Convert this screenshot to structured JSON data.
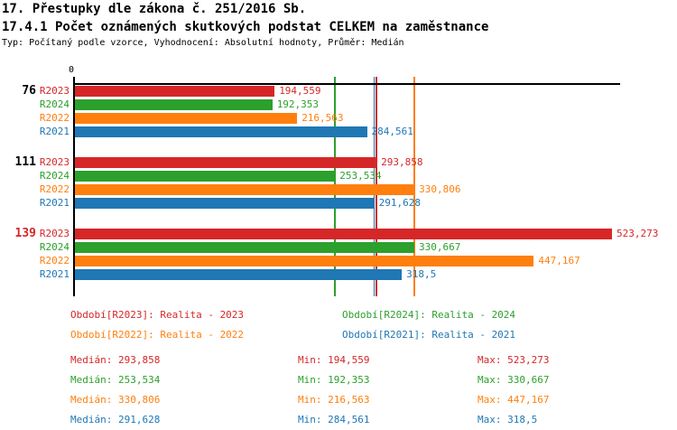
{
  "header": {
    "title_line1": "17. Přestupky dle zákona č. 251/2016 Sb.",
    "title_line2": "17.4.1 Počet oznámených skutkových podstat CELKEM na zaměstnance",
    "meta_line": "Typ: Počítaný podle vzorce, Vyhodnocení: Absolutní hodnoty, Průměr: Medián"
  },
  "colors": {
    "r2023_red": "#d62728",
    "r2024_green": "#2ca02c",
    "r2022_orange": "#ff7f0e",
    "r2021_blue": "#1f77b4",
    "axis_black": "#000000"
  },
  "chart_data": {
    "type": "bar",
    "orientation": "horizontal",
    "x_axis": {
      "zero_label": "0",
      "min": 0,
      "grid": false
    },
    "series_order": [
      "R2023",
      "R2024",
      "R2022",
      "R2021"
    ],
    "series_colors": {
      "R2023": "#d62728",
      "R2024": "#2ca02c",
      "R2022": "#ff7f0e",
      "R2021": "#1f77b4"
    },
    "groups": [
      {
        "label": "76",
        "label_color": "#000000",
        "bars": [
          {
            "series": "R2023",
            "value": 194.559,
            "label": "194,559"
          },
          {
            "series": "R2024",
            "value": 192.353,
            "label": "192,353"
          },
          {
            "series": "R2022",
            "value": 216.563,
            "label": "216,563"
          },
          {
            "series": "R2021",
            "value": 284.561,
            "label": "284,561"
          }
        ]
      },
      {
        "label": "111",
        "label_color": "#000000",
        "bars": [
          {
            "series": "R2023",
            "value": 293.858,
            "label": "293,858"
          },
          {
            "series": "R2024",
            "value": 253.534,
            "label": "253,534"
          },
          {
            "series": "R2022",
            "value": 330.806,
            "label": "330,806"
          },
          {
            "series": "R2021",
            "value": 291.628,
            "label": "291,628"
          }
        ]
      },
      {
        "label": "139",
        "label_color": "#d62728",
        "bars": [
          {
            "series": "R2023",
            "value": 523.273,
            "label": "523,273"
          },
          {
            "series": "R2024",
            "value": 330.667,
            "label": "330,667"
          },
          {
            "series": "R2022",
            "value": 447.167,
            "label": "447,167"
          },
          {
            "series": "R2021",
            "value": 318.5,
            "label": "318,5"
          }
        ]
      }
    ],
    "median_lines": [
      {
        "series": "R2024",
        "value": 253.534,
        "color": "#2ca02c"
      },
      {
        "series": "R2021",
        "value": 291.628,
        "color": "#1f77b4"
      },
      {
        "series": "R2023",
        "value": 293.858,
        "color": "#d62728"
      },
      {
        "series": "R2022",
        "value": 330.806,
        "color": "#ff7f0e"
      }
    ]
  },
  "legend": [
    {
      "label": "Období[R2023]: Realita - 2023",
      "color": "#d62728"
    },
    {
      "label": "Období[R2024]: Realita - 2024",
      "color": "#2ca02c"
    },
    {
      "label": "Období[R2022]: Realita - 2022",
      "color": "#ff7f0e"
    },
    {
      "label": "Období[R2021]: Realita - 2021",
      "color": "#1f77b4"
    }
  ],
  "stats": [
    {
      "median": "Medián: 293,858",
      "min": "Min: 194,559",
      "max": "Max: 523,273",
      "color": "#d62728"
    },
    {
      "median": "Medián: 253,534",
      "min": "Min: 192,353",
      "max": "Max: 330,667",
      "color": "#2ca02c"
    },
    {
      "median": "Medián: 330,806",
      "min": "Min: 216,563",
      "max": "Max: 447,167",
      "color": "#ff7f0e"
    },
    {
      "median": "Medián: 291,628",
      "min": "Min: 284,561",
      "max": "Max: 318,5",
      "color": "#1f77b4"
    }
  ]
}
